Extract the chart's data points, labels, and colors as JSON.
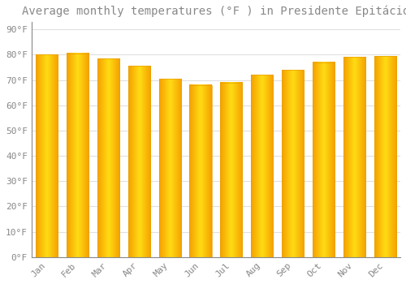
{
  "months": [
    "Jan",
    "Feb",
    "Mar",
    "Apr",
    "May",
    "Jun",
    "Jul",
    "Aug",
    "Sep",
    "Oct",
    "Nov",
    "Dec"
  ],
  "values": [
    80,
    80.5,
    78.5,
    75.5,
    70.5,
    68,
    69,
    72,
    74,
    77,
    79,
    79.5
  ],
  "bar_color_left": "#F5A800",
  "bar_color_center": "#FFD040",
  "bar_color_right": "#F5A800",
  "background_color": "#FFFFFF",
  "grid_color": "#E0E0E0",
  "title": "Average monthly temperatures (°F ) in Presidente Epitácio",
  "title_fontsize": 10,
  "ylabel_ticks": [
    0,
    10,
    20,
    30,
    40,
    50,
    60,
    70,
    80,
    90
  ],
  "ylim": [
    0,
    93
  ],
  "tick_label_format": "°F",
  "font_color": "#888888",
  "axis_color": "#888888",
  "bar_edge_color": "#E8A000",
  "fig_bg": "#FFFFFF"
}
